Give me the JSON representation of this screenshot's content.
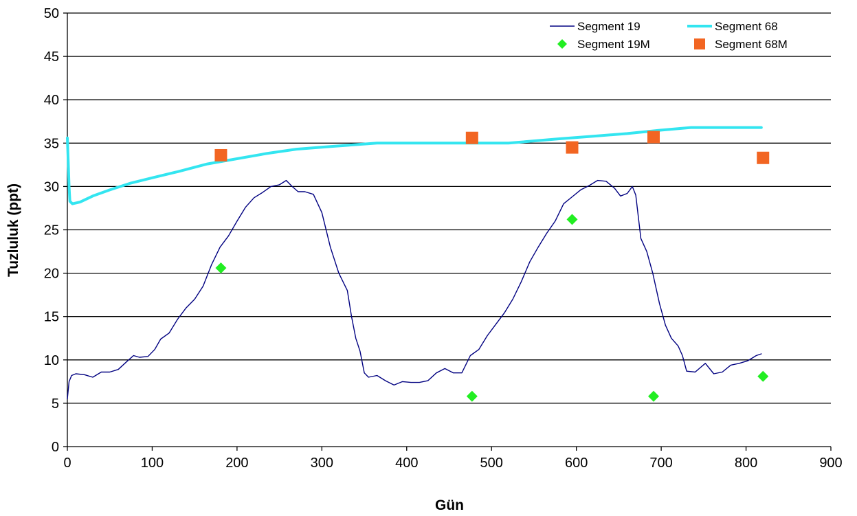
{
  "chart_data": {
    "type": "line",
    "title": "",
    "xlabel": "Gün",
    "ylabel": "Tuzluluk (ppt)",
    "xlim": [
      0,
      900
    ],
    "ylim": [
      0,
      50
    ],
    "xticks": [
      "0",
      "100",
      "200",
      "300",
      "400",
      "500",
      "600",
      "700",
      "800",
      "900"
    ],
    "yticks": [
      "0",
      "5",
      "10",
      "15",
      "20",
      "25",
      "30",
      "35",
      "40",
      "45",
      "50"
    ],
    "grid": "horizontal",
    "legend_position": "top-right",
    "series": [
      {
        "name": "Segment 19",
        "kind": "line",
        "color": "#000080",
        "points": [
          [
            0,
            5.5
          ],
          [
            2,
            7.5
          ],
          [
            5,
            8.2
          ],
          [
            10,
            8.4
          ],
          [
            20,
            8.3
          ],
          [
            30,
            8.0
          ],
          [
            40,
            8.6
          ],
          [
            50,
            8.6
          ],
          [
            60,
            8.9
          ],
          [
            70,
            9.8
          ],
          [
            78,
            10.5
          ],
          [
            85,
            10.3
          ],
          [
            95,
            10.4
          ],
          [
            103,
            11.2
          ],
          [
            110,
            12.4
          ],
          [
            120,
            13.1
          ],
          [
            130,
            14.7
          ],
          [
            140,
            16.0
          ],
          [
            150,
            17.0
          ],
          [
            160,
            18.5
          ],
          [
            170,
            21.0
          ],
          [
            180,
            23.0
          ],
          [
            190,
            24.3
          ],
          [
            200,
            26.0
          ],
          [
            210,
            27.6
          ],
          [
            220,
            28.7
          ],
          [
            230,
            29.3
          ],
          [
            240,
            30.0
          ],
          [
            250,
            30.2
          ],
          [
            258,
            30.7
          ],
          [
            265,
            30.0
          ],
          [
            272,
            29.4
          ],
          [
            280,
            29.4
          ],
          [
            290,
            29.1
          ],
          [
            300,
            27.0
          ],
          [
            310,
            23.0
          ],
          [
            320,
            20.0
          ],
          [
            330,
            18.0
          ],
          [
            335,
            15.0
          ],
          [
            340,
            12.5
          ],
          [
            345,
            11.0
          ],
          [
            350,
            8.5
          ],
          [
            355,
            8.0
          ],
          [
            365,
            8.2
          ],
          [
            375,
            7.6
          ],
          [
            385,
            7.1
          ],
          [
            395,
            7.5
          ],
          [
            405,
            7.4
          ],
          [
            415,
            7.4
          ],
          [
            425,
            7.6
          ],
          [
            435,
            8.5
          ],
          [
            445,
            9.0
          ],
          [
            455,
            8.5
          ],
          [
            465,
            8.5
          ],
          [
            475,
            10.5
          ],
          [
            485,
            11.2
          ],
          [
            495,
            12.8
          ],
          [
            505,
            14.1
          ],
          [
            515,
            15.4
          ],
          [
            525,
            17.0
          ],
          [
            535,
            19.0
          ],
          [
            545,
            21.3
          ],
          [
            555,
            23.0
          ],
          [
            565,
            24.6
          ],
          [
            575,
            26.0
          ],
          [
            585,
            28.0
          ],
          [
            595,
            28.8
          ],
          [
            605,
            29.6
          ],
          [
            615,
            30.1
          ],
          [
            625,
            30.7
          ],
          [
            635,
            30.6
          ],
          [
            645,
            29.8
          ],
          [
            652,
            28.9
          ],
          [
            660,
            29.2
          ],
          [
            666,
            30.0
          ],
          [
            670,
            29.0
          ],
          [
            676,
            24.0
          ],
          [
            683,
            22.5
          ],
          [
            690,
            20.0
          ],
          [
            698,
            16.5
          ],
          [
            705,
            14.0
          ],
          [
            712,
            12.5
          ],
          [
            720,
            11.6
          ],
          [
            725,
            10.5
          ],
          [
            730,
            8.7
          ],
          [
            740,
            8.6
          ],
          [
            752,
            9.6
          ],
          [
            762,
            8.4
          ],
          [
            772,
            8.6
          ],
          [
            782,
            9.4
          ],
          [
            792,
            9.6
          ],
          [
            802,
            9.9
          ],
          [
            812,
            10.5
          ],
          [
            818,
            10.7
          ]
        ]
      },
      {
        "name": "Segment 68",
        "kind": "line",
        "color": "#33E5F0",
        "points": [
          [
            0,
            35.6
          ],
          [
            1,
            33.0
          ],
          [
            2,
            30.0
          ],
          [
            3,
            28.3
          ],
          [
            6,
            28.0
          ],
          [
            15,
            28.2
          ],
          [
            30,
            28.9
          ],
          [
            50,
            29.6
          ],
          [
            75,
            30.4
          ],
          [
            100,
            31.0
          ],
          [
            130,
            31.7
          ],
          [
            165,
            32.6
          ],
          [
            200,
            33.2
          ],
          [
            235,
            33.8
          ],
          [
            270,
            34.3
          ],
          [
            310,
            34.6
          ],
          [
            365,
            35.0
          ],
          [
            420,
            35.0
          ],
          [
            480,
            35.0
          ],
          [
            520,
            35.0
          ],
          [
            580,
            35.5
          ],
          [
            620,
            35.8
          ],
          [
            660,
            36.1
          ],
          [
            700,
            36.5
          ],
          [
            735,
            36.8
          ],
          [
            780,
            36.8
          ],
          [
            818,
            36.8
          ]
        ]
      },
      {
        "name": "Segment 19M",
        "kind": "scatter",
        "marker": "diamond",
        "color": "#22EE22",
        "points": [
          [
            181,
            20.6
          ],
          [
            477,
            5.8
          ],
          [
            595,
            26.2
          ],
          [
            691,
            5.8
          ],
          [
            820,
            8.1
          ]
        ]
      },
      {
        "name": "Segment 68M",
        "kind": "scatter",
        "marker": "square",
        "color": "#F26522",
        "points": [
          [
            181,
            33.6
          ],
          [
            477,
            35.6
          ],
          [
            595,
            34.5
          ],
          [
            691,
            35.7
          ],
          [
            820,
            33.3
          ]
        ]
      }
    ]
  }
}
